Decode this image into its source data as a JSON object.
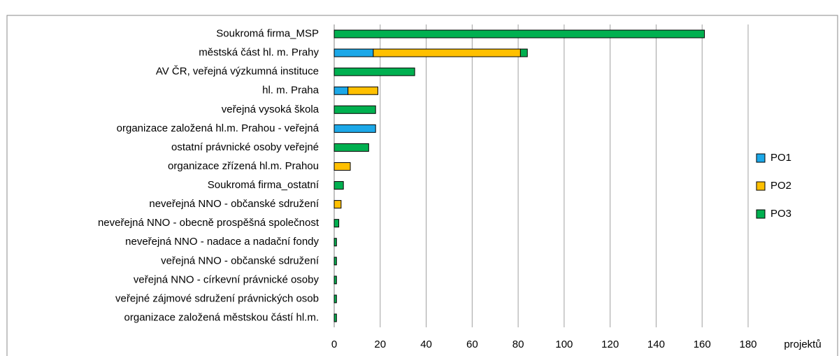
{
  "chart_data": {
    "type": "bar",
    "orientation": "horizontal",
    "stacked": true,
    "categories": [
      "Soukromá firma_MSP",
      "městská část hl. m. Prahy",
      "AV ČR, veřejná výzkumná instituce",
      "hl. m. Praha",
      "veřejná vysoká škola",
      "organizace založená hl.m. Prahou - veřejná",
      "ostatní právnické osoby veřejné",
      "organizace zřízená hl.m. Prahou",
      "Soukromá firma_ostatní",
      "neveřejná NNO - občanské sdružení",
      "neveřejná NNO - obecně prospěšná společnost",
      "neveřejná NNO - nadace a nadační fondy",
      "veřejná NNO - občanské sdružení",
      "veřejná NNO - církevní právnické osoby",
      "veřejné zájmové sdružení právnických osob",
      "organizace založená městskou částí hl.m."
    ],
    "series": [
      {
        "name": "PO1",
        "color": "#1ca8e8",
        "values": [
          null,
          17,
          null,
          6,
          null,
          18,
          null,
          null,
          null,
          null,
          null,
          null,
          null,
          null,
          null,
          null
        ]
      },
      {
        "name": "PO2",
        "color": "#ffc000",
        "values": [
          null,
          64,
          null,
          13,
          null,
          null,
          null,
          7,
          null,
          3,
          null,
          null,
          null,
          null,
          null,
          null
        ]
      },
      {
        "name": "PO3",
        "color": "#00b050",
        "values": [
          161,
          3,
          35,
          null,
          18,
          null,
          15,
          null,
          4,
          null,
          2,
          1,
          1,
          1,
          1,
          1
        ]
      }
    ],
    "xlim": [
      0,
      180
    ],
    "xticks": [
      0,
      20,
      40,
      60,
      80,
      100,
      120,
      140,
      160,
      180
    ],
    "x_label": "projektů",
    "grid": true,
    "legend": "right"
  }
}
